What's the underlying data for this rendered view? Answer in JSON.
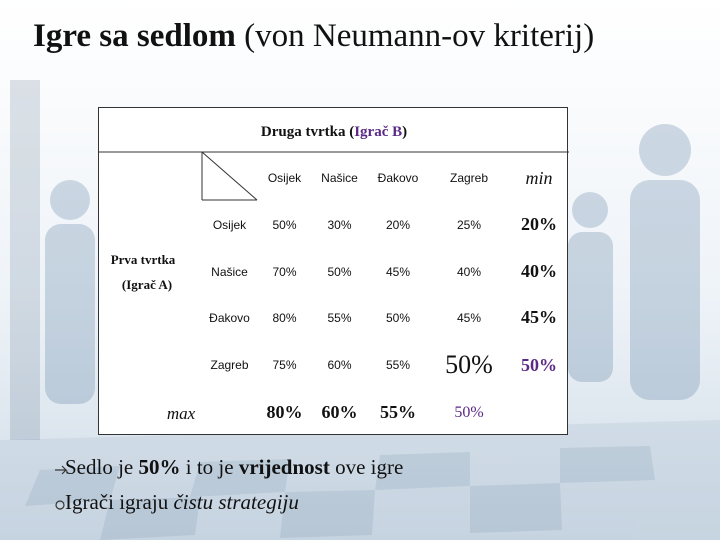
{
  "slide": {
    "title_bold": "Igre sa sedlom",
    "title_rest": "(von Neumann-ov kriterij)"
  },
  "table": {
    "header_prefix": "Druga tvrtka (",
    "header_player": "Igrač B",
    "header_suffix": ")",
    "row_player_line1": "Prva tvrtka",
    "row_player_line2": "(Igrač A)",
    "columns": [
      "Osijek",
      "Našice",
      "Đakovo",
      "Zagreb"
    ],
    "min_label": "min",
    "max_label": "max",
    "rows": [
      {
        "label": "Osijek",
        "cells": [
          "50%",
          "30%",
          "20%",
          "25%"
        ],
        "min": "20%"
      },
      {
        "label": "Našice",
        "cells": [
          "70%",
          "50%",
          "45%",
          "40%"
        ],
        "min": "40%"
      },
      {
        "label": "Đakovo",
        "cells": [
          "80%",
          "55%",
          "50%",
          "45%"
        ],
        "min": "45%"
      },
      {
        "label": "Zagreb",
        "cells": [
          "75%",
          "60%",
          "55%",
          "50%"
        ],
        "min": "50%"
      }
    ],
    "max_row": [
      "80%",
      "60%",
      "55%",
      "50%"
    ]
  },
  "bullets": [
    {
      "icon": "arrow-right-icon",
      "p1": "Sedlo je ",
      "b1": "50%",
      "p2": " i to je ",
      "b2": "vrijednost",
      "p3": " ove igre"
    },
    {
      "icon": "circle-bullet-icon",
      "p1": "Igrači igraju ",
      "i1": "čistu strategiju"
    }
  ],
  "colors": {
    "accent": "#5b2a86"
  }
}
